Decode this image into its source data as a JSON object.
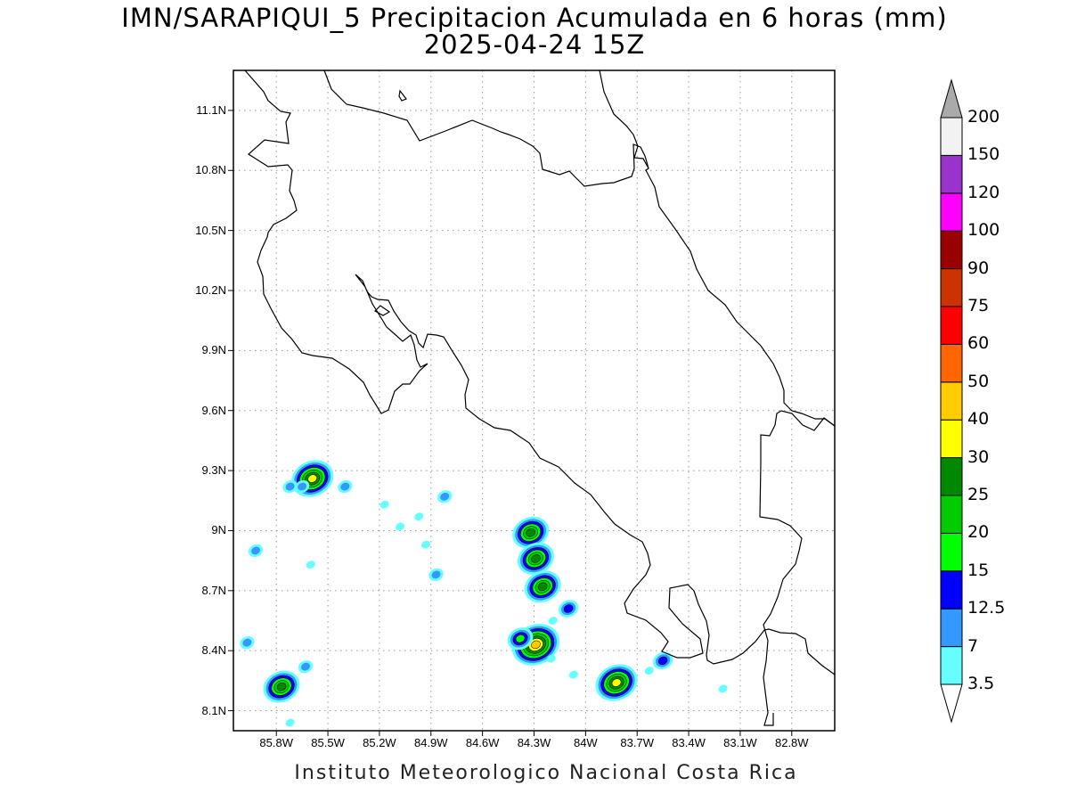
{
  "title": {
    "line1": "IMN/SARAPIQUI_5 Precipitacion Acumulada en 6 horas (mm)",
    "line2": "2025-04-24 15Z"
  },
  "footer": "Instituto Meteorologico Nacional Costa Rica",
  "axes": {
    "lat_labels": [
      "11.1N",
      "10.8N",
      "10.5N",
      "10.2N",
      "9.9N",
      "9.6N",
      "9.3N",
      "9N",
      "8.7N",
      "8.4N",
      "8.1N"
    ],
    "lon_labels": [
      "85.8W",
      "85.5W",
      "85.2W",
      "84.9W",
      "84.6W",
      "84.3W",
      "84W",
      "83.7W",
      "83.4W",
      "83.1W",
      "82.8W"
    ],
    "lat_range": [
      8.0,
      11.3
    ],
    "lon_range": [
      -86.05,
      -82.55
    ],
    "grid": "dotted"
  },
  "colorbar": {
    "levels": [
      "3.5",
      "7",
      "12.5",
      "15",
      "20",
      "25",
      "30",
      "40",
      "50",
      "60",
      "75",
      "90",
      "100",
      "120",
      "150",
      "200"
    ],
    "colors": [
      "#ffffff",
      "#66ffff",
      "#3399ff",
      "#0000ff",
      "#00ff00",
      "#00cc00",
      "#008800",
      "#ffff00",
      "#ffcc00",
      "#ff6600",
      "#ff0000",
      "#cc3300",
      "#990000",
      "#ff00ff",
      "#9933cc",
      "#f2f2f2",
      "#aaaaaa"
    ]
  },
  "rain_cells": [
    {
      "lon": -85.59,
      "lat": 9.26,
      "peak_mm": 30
    },
    {
      "lon": -85.65,
      "lat": 9.22,
      "peak_mm": 7
    },
    {
      "lon": -85.72,
      "lat": 9.22,
      "peak_mm": 7
    },
    {
      "lon": -85.4,
      "lat": 9.22,
      "peak_mm": 7
    },
    {
      "lon": -84.82,
      "lat": 9.17,
      "peak_mm": 7
    },
    {
      "lon": -85.92,
      "lat": 8.9,
      "peak_mm": 7
    },
    {
      "lon": -84.32,
      "lat": 8.99,
      "peak_mm": 25
    },
    {
      "lon": -84.29,
      "lat": 8.86,
      "peak_mm": 25
    },
    {
      "lon": -84.25,
      "lat": 8.72,
      "peak_mm": 25
    },
    {
      "lon": -84.1,
      "lat": 8.61,
      "peak_mm": 12.5
    },
    {
      "lon": -84.29,
      "lat": 8.43,
      "peak_mm": 40
    },
    {
      "lon": -84.38,
      "lat": 8.46,
      "peak_mm": 15
    },
    {
      "lon": -83.82,
      "lat": 8.24,
      "peak_mm": 30
    },
    {
      "lon": -83.55,
      "lat": 8.35,
      "peak_mm": 12.5
    },
    {
      "lon": -85.77,
      "lat": 8.22,
      "peak_mm": 25
    },
    {
      "lon": -85.63,
      "lat": 8.32,
      "peak_mm": 7
    },
    {
      "lon": -85.97,
      "lat": 8.44,
      "peak_mm": 7
    },
    {
      "lon": -84.87,
      "lat": 8.78,
      "peak_mm": 7
    },
    {
      "lon": -85.08,
      "lat": 9.02,
      "peak_mm": 3.5
    },
    {
      "lon": -84.97,
      "lat": 9.07,
      "peak_mm": 3.5
    },
    {
      "lon": -84.93,
      "lat": 8.93,
      "peak_mm": 3.5
    },
    {
      "lon": -85.17,
      "lat": 9.13,
      "peak_mm": 3.5
    },
    {
      "lon": -85.6,
      "lat": 8.83,
      "peak_mm": 3.5
    },
    {
      "lon": -84.19,
      "lat": 8.55,
      "peak_mm": 3.5
    },
    {
      "lon": -84.2,
      "lat": 8.36,
      "peak_mm": 3.5
    },
    {
      "lon": -84.07,
      "lat": 8.28,
      "peak_mm": 3.5
    },
    {
      "lon": -83.63,
      "lat": 8.3,
      "peak_mm": 3.5
    },
    {
      "lon": -83.2,
      "lat": 8.21,
      "peak_mm": 3.5
    },
    {
      "lon": -85.72,
      "lat": 8.04,
      "peak_mm": 3.5
    }
  ]
}
